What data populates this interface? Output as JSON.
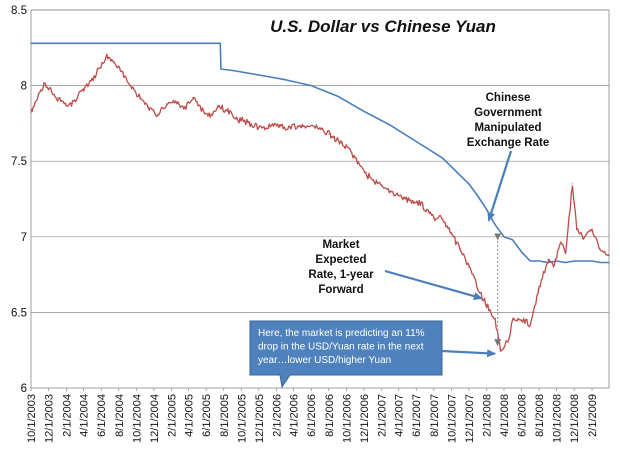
{
  "chart_data": {
    "type": "line",
    "title": "U.S. Dollar vs Chinese Yuan",
    "xlabel": "",
    "ylabel": "",
    "ylim": [
      6,
      8.5
    ],
    "y_ticks": [
      "6",
      "6.5",
      "7",
      "7.5",
      "8",
      "8.5"
    ],
    "grid": "horizontal",
    "x_start": "2003-10-01",
    "x_end": "2009-04-01",
    "x_tick_labels": [
      "10/1/2003",
      "12/1/2003",
      "2/1/2004",
      "4/1/2004",
      "6/1/2004",
      "8/1/2004",
      "10/1/2004",
      "12/1/2004",
      "2/1/2005",
      "4/1/2005",
      "6/1/2005",
      "8/1/2005",
      "10/1/2005",
      "12/1/2005",
      "2/1/2006",
      "4/1/2006",
      "6/1/2006",
      "8/1/2006",
      "10/1/2006",
      "12/1/2006",
      "2/1/2007",
      "4/1/2007",
      "6/1/2007",
      "8/1/2007",
      "10/1/2007",
      "12/1/2007",
      "2/1/2008",
      "4/1/2008",
      "6/1/2008",
      "8/1/2008",
      "10/1/2008",
      "12/1/2008",
      "2/1/2009"
    ],
    "series": [
      {
        "color": "#4a7ebb",
        "points": [
          [
            "2003-10-01",
            8.28
          ],
          [
            "2004-06-01",
            8.28
          ],
          [
            "2005-01-01",
            8.28
          ],
          [
            "2005-07-20",
            8.28
          ],
          [
            "2005-07-22",
            8.11
          ],
          [
            "2005-09-01",
            8.1
          ],
          [
            "2005-12-01",
            8.07
          ],
          [
            "2006-03-01",
            8.04
          ],
          [
            "2006-06-01",
            8.0
          ],
          [
            "2006-09-01",
            7.93
          ],
          [
            "2006-12-01",
            7.83
          ],
          [
            "2007-03-01",
            7.74
          ],
          [
            "2007-06-01",
            7.63
          ],
          [
            "2007-09-01",
            7.52
          ],
          [
            "2007-12-01",
            7.35
          ],
          [
            "2008-01-01",
            7.27
          ],
          [
            "2008-02-01",
            7.18
          ],
          [
            "2008-03-01",
            7.08
          ],
          [
            "2008-04-01",
            7.0
          ],
          [
            "2008-05-01",
            6.98
          ],
          [
            "2008-06-01",
            6.9
          ],
          [
            "2008-07-01",
            6.84
          ],
          [
            "2008-08-01",
            6.84
          ],
          [
            "2008-09-01",
            6.83
          ],
          [
            "2008-10-01",
            6.84
          ],
          [
            "2008-11-01",
            6.83
          ],
          [
            "2008-12-01",
            6.84
          ],
          [
            "2009-01-01",
            6.84
          ],
          [
            "2009-02-01",
            6.84
          ],
          [
            "2009-03-01",
            6.83
          ],
          [
            "2009-04-01",
            6.83
          ]
        ]
      },
      {
        "color": "#be4b48",
        "points": [
          [
            "2003-10-01",
            7.82
          ],
          [
            "2003-11-15",
            8.01
          ],
          [
            "2004-01-01",
            7.92
          ],
          [
            "2004-02-01",
            7.87
          ],
          [
            "2004-03-01",
            7.9
          ],
          [
            "2004-04-01",
            7.98
          ],
          [
            "2004-05-15",
            8.08
          ],
          [
            "2004-06-20",
            8.2
          ],
          [
            "2004-07-15",
            8.15
          ],
          [
            "2004-08-15",
            8.08
          ],
          [
            "2004-09-15",
            7.98
          ],
          [
            "2004-10-15",
            7.92
          ],
          [
            "2004-11-15",
            7.86
          ],
          [
            "2004-12-15",
            7.8
          ],
          [
            "2005-01-15",
            7.88
          ],
          [
            "2005-02-15",
            7.9
          ],
          [
            "2005-03-15",
            7.85
          ],
          [
            "2005-04-15",
            7.92
          ],
          [
            "2005-05-15",
            7.84
          ],
          [
            "2005-06-15",
            7.8
          ],
          [
            "2005-07-15",
            7.86
          ],
          [
            "2005-08-15",
            7.83
          ],
          [
            "2005-09-15",
            7.78
          ],
          [
            "2005-11-01",
            7.75
          ],
          [
            "2005-12-15",
            7.72
          ],
          [
            "2006-02-01",
            7.74
          ],
          [
            "2006-03-15",
            7.72
          ],
          [
            "2006-05-01",
            7.73
          ],
          [
            "2006-06-15",
            7.72
          ],
          [
            "2006-08-01",
            7.68
          ],
          [
            "2006-09-15",
            7.62
          ],
          [
            "2006-11-01",
            7.52
          ],
          [
            "2006-12-15",
            7.4
          ],
          [
            "2007-02-01",
            7.34
          ],
          [
            "2007-03-15",
            7.28
          ],
          [
            "2007-05-01",
            7.25
          ],
          [
            "2007-06-15",
            7.22
          ],
          [
            "2007-08-01",
            7.12
          ],
          [
            "2007-09-01",
            7.12
          ],
          [
            "2007-10-01",
            7.02
          ],
          [
            "2007-11-01",
            6.92
          ],
          [
            "2007-12-01",
            6.8
          ],
          [
            "2008-01-01",
            6.66
          ],
          [
            "2008-02-01",
            6.55
          ],
          [
            "2008-03-01",
            6.45
          ],
          [
            "2008-03-20",
            6.26
          ],
          [
            "2008-04-15",
            6.3
          ],
          [
            "2008-05-01",
            6.46
          ],
          [
            "2008-06-01",
            6.45
          ],
          [
            "2008-07-01",
            6.42
          ],
          [
            "2008-08-01",
            6.65
          ],
          [
            "2008-09-01",
            6.85
          ],
          [
            "2008-09-20",
            6.8
          ],
          [
            "2008-10-15",
            6.96
          ],
          [
            "2008-11-01",
            6.9
          ],
          [
            "2008-11-25",
            7.35
          ],
          [
            "2008-12-10",
            7.05
          ],
          [
            "2009-01-01",
            7.0
          ],
          [
            "2009-02-01",
            7.05
          ],
          [
            "2009-03-01",
            6.92
          ],
          [
            "2009-04-01",
            6.88
          ]
        ]
      }
    ],
    "annotations": [
      {
        "lines": [
          "Chinese",
          "Government",
          "Manipulated",
          "Exchange Rate"
        ],
        "points_to": [
          "2008-02-01",
          7.08
        ]
      },
      {
        "lines": [
          "Market",
          "Expected",
          "Rate, 1-year",
          "Forward"
        ],
        "points_to": [
          "2008-01-01",
          6.58
        ]
      },
      {
        "lines": [
          "Here, the market is predicting an 11%",
          "drop in the USD/Yuan rate in the next",
          "year…lower USD/higher Yuan"
        ],
        "points_to": [
          "2008-03-15",
          6.28
        ]
      }
    ]
  }
}
